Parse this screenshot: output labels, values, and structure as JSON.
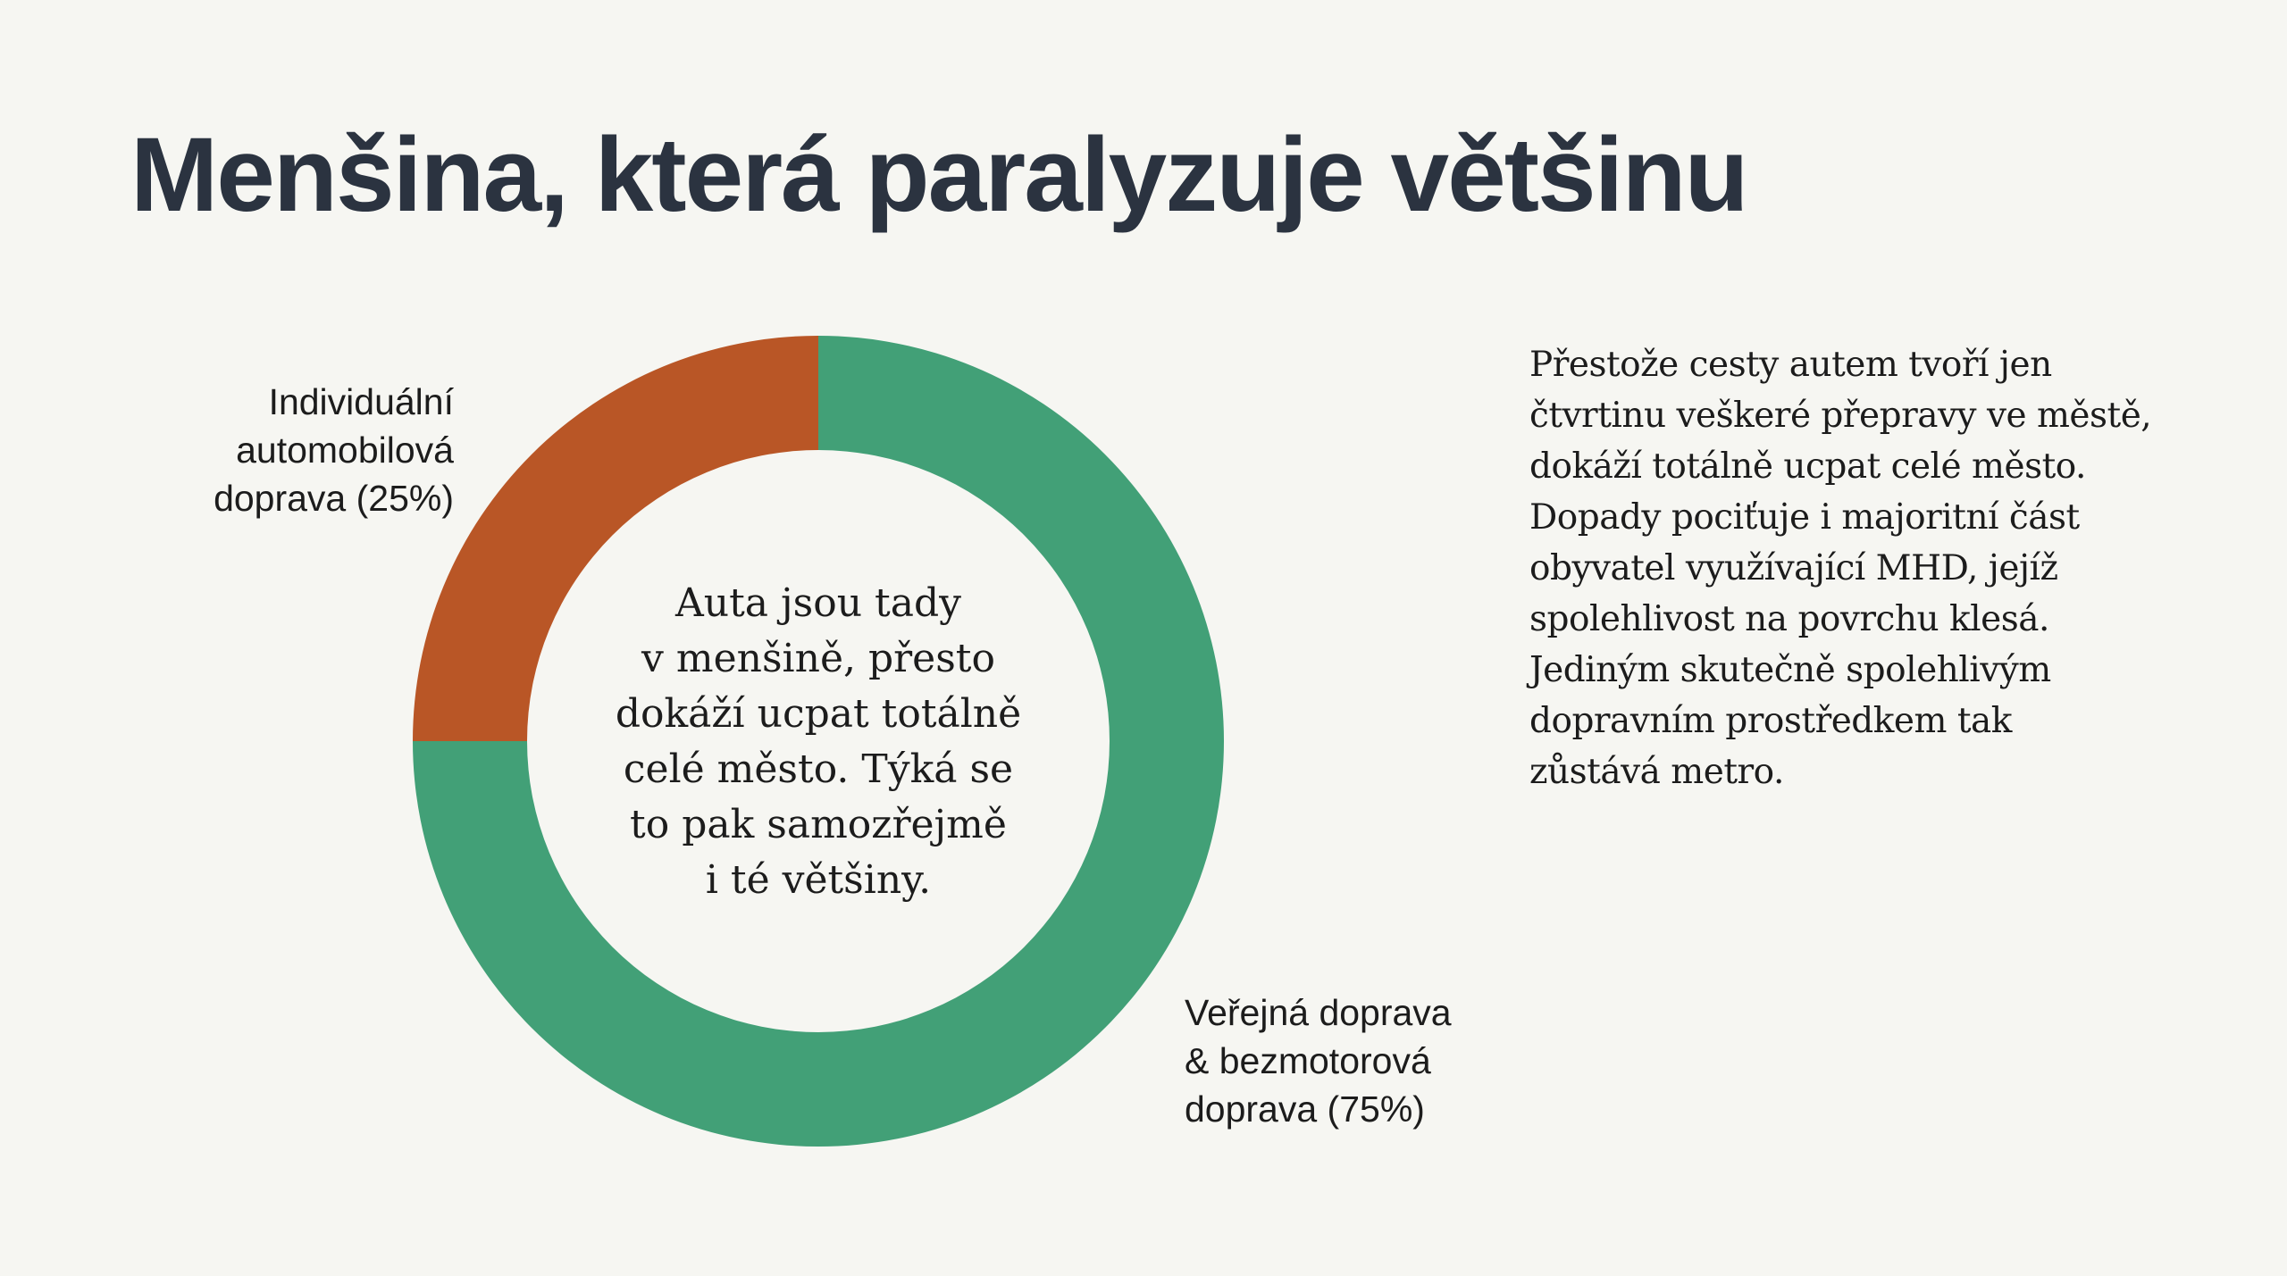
{
  "title": "Menšina, která paralyzuje většinu",
  "chart_data": {
    "type": "pie",
    "variant": "donut",
    "categories": [
      "Individuální automobilová doprava",
      "Veřejná doprava & bezmotorová doprava"
    ],
    "values": [
      25,
      75
    ],
    "unit": "%",
    "colors": [
      "#b95626",
      "#42a077"
    ],
    "labels": [
      {
        "lines": [
          "Individuální",
          "automobilová",
          "doprava (25%)"
        ]
      },
      {
        "lines": [
          "Veřejná doprava",
          "& bezmotorová",
          "doprava (75%)"
        ]
      }
    ],
    "center_text": [
      "Auta jsou tady",
      "v menšině, přesto",
      "dokáží ucpat totálně",
      "celé město. Týká se",
      "to pak samozřejmě",
      "i té většiny."
    ]
  },
  "paragraph": [
    "Přestože cesty autem tvoří jen",
    "čtvrtinu veškeré přepravy ve městě,",
    "dokáží totálně ucpat celé město.",
    "Dopady pociťuje i majoritní část",
    "obyvatel využívající MHD, jejíž",
    "spolehlivost na povrchu klesá.",
    "Jediným skutečně spolehlivým",
    "dopravním prostředkem tak",
    "zůstává metro."
  ]
}
